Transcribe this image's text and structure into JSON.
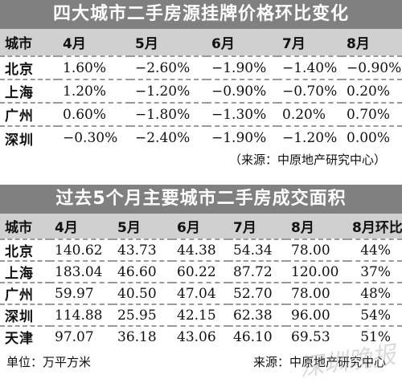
{
  "table1": {
    "title": "四大城市二手房源挂牌价格环比变化",
    "headers": [
      "城市",
      "4月",
      "5月",
      "6月",
      "7月",
      "8月"
    ],
    "rows": [
      [
        "北京",
        "1.60%",
        "−2.60%",
        "−1.90%",
        "−1.40%",
        "−0.90%"
      ],
      [
        "上海",
        "1.20%",
        "−1.20%",
        "−0.90%",
        "−0.70%",
        "0.20%"
      ],
      [
        "广州",
        "0.60%",
        "−1.80%",
        "−1.30%",
        "0.20%",
        "0.70%"
      ],
      [
        "深圳",
        "−0.30%",
        "−2.40%",
        "−1.90%",
        "−1.20%",
        "0.00%"
      ]
    ],
    "source": "（来源：中原地产研究中心）"
  },
  "table2": {
    "title": "过去5个月主要城市二手房成交面积",
    "headers": [
      "城市",
      "4月",
      "5月",
      "6月",
      "7月",
      "8月",
      "8月环比"
    ],
    "rows": [
      [
        "北京",
        "140.62",
        "43.73",
        "44.38",
        "54.34",
        "78.00",
        "44%"
      ],
      [
        "上海",
        "183.04",
        "46.60",
        "60.22",
        "87.72",
        "120.00",
        "37%"
      ],
      [
        "广州",
        "59.97",
        "40.50",
        "47.04",
        "52.70",
        "78.00",
        "48%"
      ],
      [
        "深圳",
        "114.88",
        "25.95",
        "42.15",
        "62.38",
        "96.00",
        "54%"
      ],
      [
        "天津",
        "97.07",
        "36.18",
        "43.06",
        "46.10",
        "69.53",
        "51%"
      ]
    ],
    "unit": "单位：万平方米",
    "source": "来源：中原地产研究中心"
  },
  "watermark": "深圳晚报"
}
